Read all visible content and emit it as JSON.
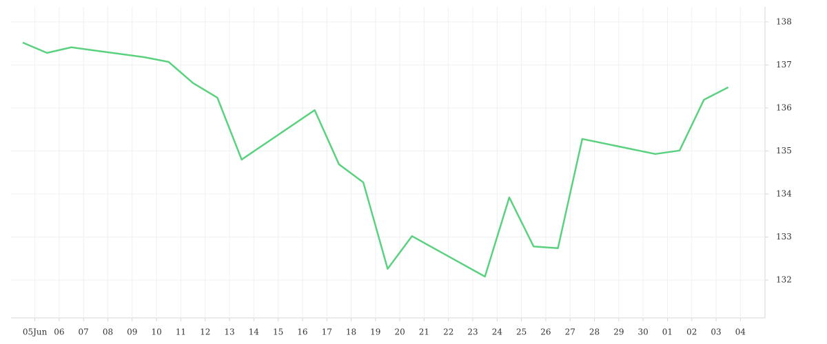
{
  "chart_data": {
    "type": "line",
    "x": [
      0,
      1,
      2,
      5,
      6,
      7,
      8,
      9,
      12,
      13,
      14,
      15,
      16,
      19,
      20,
      21,
      22,
      23,
      26,
      27,
      28,
      29
    ],
    "series": [
      {
        "color": "#5ad17f",
        "values": [
          137.52,
          137.28,
          137.41,
          137.18,
          137.07,
          136.58,
          136.24,
          134.8,
          135.95,
          134.69,
          134.27,
          132.26,
          133.02,
          132.08,
          133.92,
          132.78,
          132.74,
          135.28,
          134.93,
          135.01,
          136.19,
          136.48
        ]
      }
    ],
    "xlim": [
      -0.48,
      30.51
    ],
    "xticks": [
      {
        "value": 0.5,
        "label": "05Jun"
      },
      {
        "value": 1.5,
        "label": "06"
      },
      {
        "value": 2.5,
        "label": "07"
      },
      {
        "value": 3.5,
        "label": "08"
      },
      {
        "value": 4.5,
        "label": "09"
      },
      {
        "value": 5.5,
        "label": "10"
      },
      {
        "value": 6.5,
        "label": "11"
      },
      {
        "value": 7.5,
        "label": "12"
      },
      {
        "value": 8.5,
        "label": "13"
      },
      {
        "value": 9.5,
        "label": "14"
      },
      {
        "value": 10.5,
        "label": "15"
      },
      {
        "value": 11.5,
        "label": "16"
      },
      {
        "value": 12.5,
        "label": "17"
      },
      {
        "value": 13.5,
        "label": "18"
      },
      {
        "value": 14.5,
        "label": "19"
      },
      {
        "value": 15.5,
        "label": "20"
      },
      {
        "value": 16.5,
        "label": "21"
      },
      {
        "value": 17.5,
        "label": "22"
      },
      {
        "value": 18.5,
        "label": "23"
      },
      {
        "value": 19.5,
        "label": "24"
      },
      {
        "value": 20.5,
        "label": "25"
      },
      {
        "value": 21.5,
        "label": "26"
      },
      {
        "value": 22.5,
        "label": "27"
      },
      {
        "value": 23.5,
        "label": "28"
      },
      {
        "value": 24.5,
        "label": "29"
      },
      {
        "value": 25.5,
        "label": "30"
      },
      {
        "value": 26.5,
        "label": "01"
      },
      {
        "value": 27.5,
        "label": "02"
      },
      {
        "value": 28.5,
        "label": "03"
      },
      {
        "value": 29.5,
        "label": "04"
      }
    ],
    "ylim": [
      131.12,
      138.35
    ],
    "yticks": [
      132,
      133,
      134,
      135,
      136,
      137,
      138
    ],
    "grid": true
  }
}
